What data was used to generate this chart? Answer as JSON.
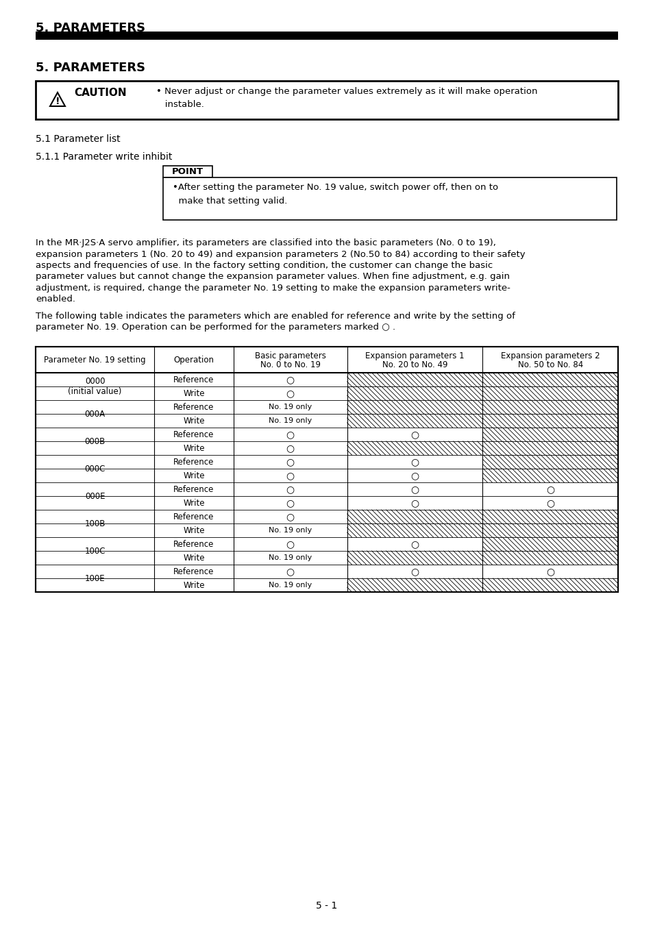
{
  "page_title": "5. PARAMETERS",
  "section_title": "5. PARAMETERS",
  "caution_text_line1": "• Never adjust or change the parameter values extremely as it will make operation",
  "caution_text_line2": "   instable.",
  "section_1": "5.1 Parameter list",
  "section_1_1": "5.1.1 Parameter write inhibit",
  "point_text_line1": "•After setting the parameter No. 19 value, switch power off, then on to",
  "point_text_line2": "  make that setting valid.",
  "body_text_1_lines": [
    "In the MR·J2S·A servo amplifier, its parameters are classified into the basic parameters (No. 0 to 19),",
    "expansion parameters 1 (No. 20 to 49) and expansion parameters 2 (No.50 to 84) according to their safety",
    "aspects and frequencies of use. In the factory setting condition, the customer can change the basic",
    "parameter values but cannot change the expansion parameter values. When fine adjustment, e.g. gain",
    "adjustment, is required, change the parameter No. 19 setting to make the expansion parameters write-",
    "enabled."
  ],
  "body_text_2_lines": [
    "The following table indicates the parameters which are enabled for reference and write by the setting of",
    "parameter No. 19. Operation can be performed for the parameters marked ○ ."
  ],
  "table_header_col0": "Parameter No. 19 setting",
  "table_header_col1": "Operation",
  "table_header_col2_line1": "Basic parameters",
  "table_header_col2_line2": "No. 0 to No. 19",
  "table_header_col3_line1": "Expansion parameters 1",
  "table_header_col3_line2": "No. 20 to No. 49",
  "table_header_col4_line1": "Expansion parameters 2",
  "table_header_col4_line2": "No. 50 to No. 84",
  "page_number": "5 - 1",
  "background_color": "#ffffff"
}
